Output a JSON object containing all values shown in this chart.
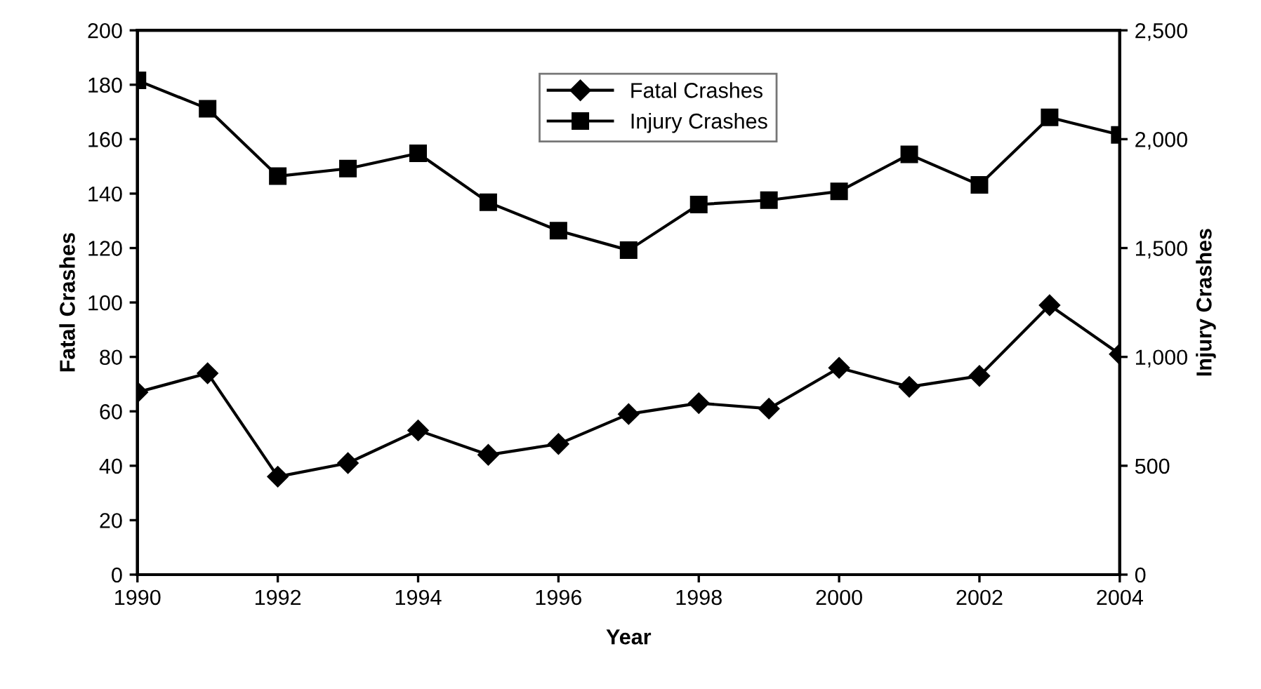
{
  "chart_data": {
    "type": "line",
    "xlabel": "Year",
    "ylabel": "Fatal Crashes",
    "y2label": "Injury Crashes",
    "x": [
      1990,
      1991,
      1992,
      1993,
      1994,
      1995,
      1996,
      1997,
      1998,
      1999,
      2000,
      2001,
      2002,
      2003,
      2004
    ],
    "series": [
      {
        "name": "Fatal Crashes",
        "color": "#000000",
        "marker": "diamond",
        "values": [
          67,
          74,
          36,
          41,
          53,
          44,
          48,
          59,
          63,
          61,
          76,
          69,
          73,
          99,
          81
        ]
      },
      {
        "name": "Injury Crashes",
        "color": "#000000",
        "marker": "square",
        "axis": "y2",
        "values": [
          2270,
          2140,
          1830,
          1865,
          1935,
          1710,
          1580,
          1490,
          1700,
          1720,
          1760,
          1930,
          1790,
          2100,
          2020
        ]
      }
    ],
    "xlim": [
      1990,
      2004
    ],
    "xticks": [
      1990,
      1992,
      1994,
      1996,
      1998,
      2000,
      2002,
      2004
    ],
    "ylim": [
      0,
      200
    ],
    "yticks": [
      0,
      20,
      40,
      60,
      80,
      100,
      120,
      140,
      160,
      180,
      200
    ],
    "y2lim": [
      0,
      2500
    ],
    "y2ticks": [
      {
        "value": 0,
        "label": "0"
      },
      {
        "value": 500,
        "label": "500"
      },
      {
        "value": 1000,
        "label": "1,000"
      },
      {
        "value": 1500,
        "label": "1,500"
      },
      {
        "value": 2000,
        "label": "2,000"
      },
      {
        "value": 2500,
        "label": "2,500"
      }
    ],
    "legend": "top",
    "grid": false,
    "line_style": "solid"
  }
}
